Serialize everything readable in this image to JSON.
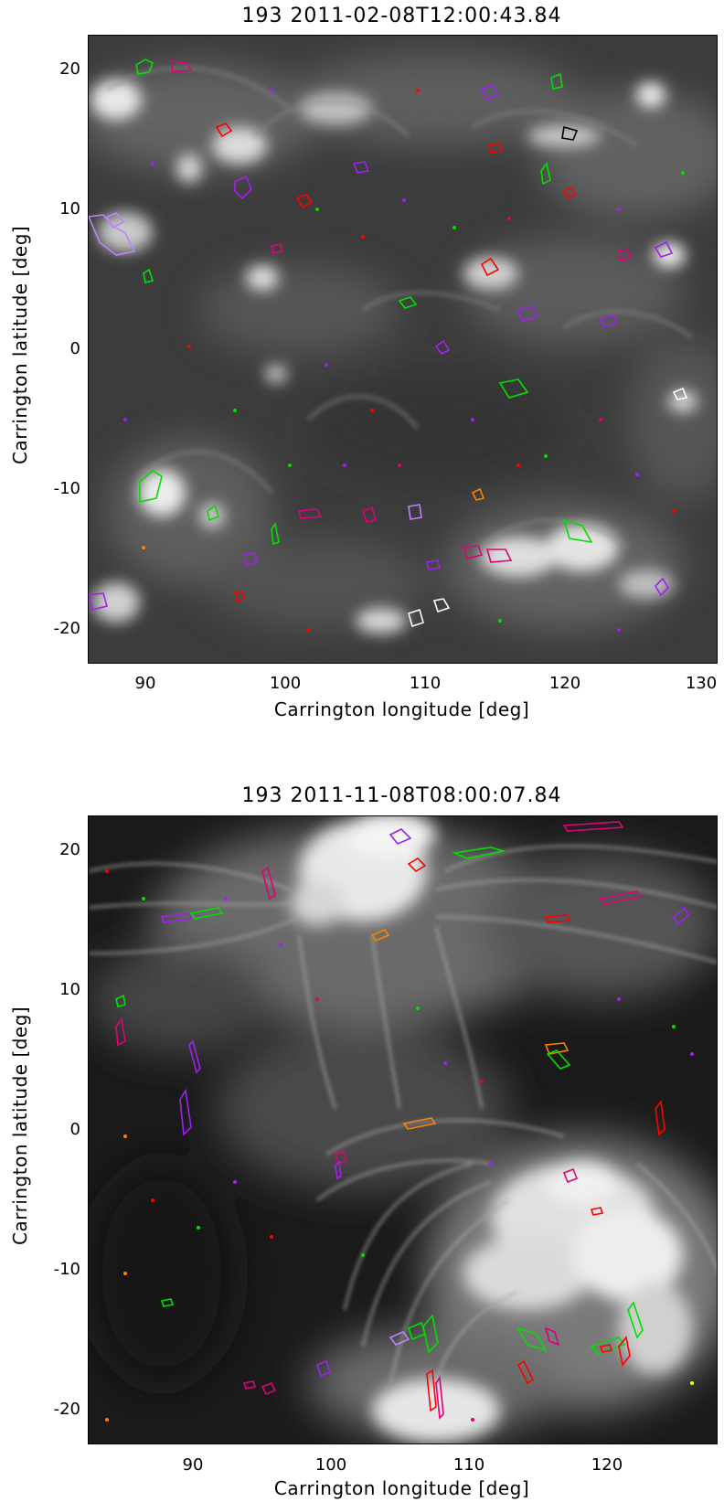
{
  "panels": [
    {
      "title": "193 2011-02-08T12:00:43.84",
      "xlabel": "Carrington longitude [deg]",
      "ylabel": "Carrington latitude [deg]",
      "xticks": [
        "90",
        "100",
        "110",
        "120",
        "130"
      ],
      "yticks": [
        "20",
        "10",
        "0",
        "-10",
        "-20"
      ],
      "xlim": [
        86,
        131
      ],
      "ylim": [
        -22.5,
        22.5
      ]
    },
    {
      "title": "193 2011-11-08T08:00:07.84",
      "xlabel": "Carrington longitude [deg]",
      "ylabel": "Carrington latitude [deg]",
      "xticks": [
        "90",
        "100",
        "110",
        "120"
      ],
      "yticks": [
        "20",
        "10",
        "0",
        "-10",
        "-20"
      ],
      "xlim": [
        82,
        127.5
      ],
      "ylim": [
        -22.5,
        22.5
      ]
    }
  ],
  "contour_colors": [
    "#00e000",
    "#ff0000",
    "#a020f0",
    "#e0007a",
    "#ff8000",
    "#ffffff",
    "#c080ff"
  ]
}
